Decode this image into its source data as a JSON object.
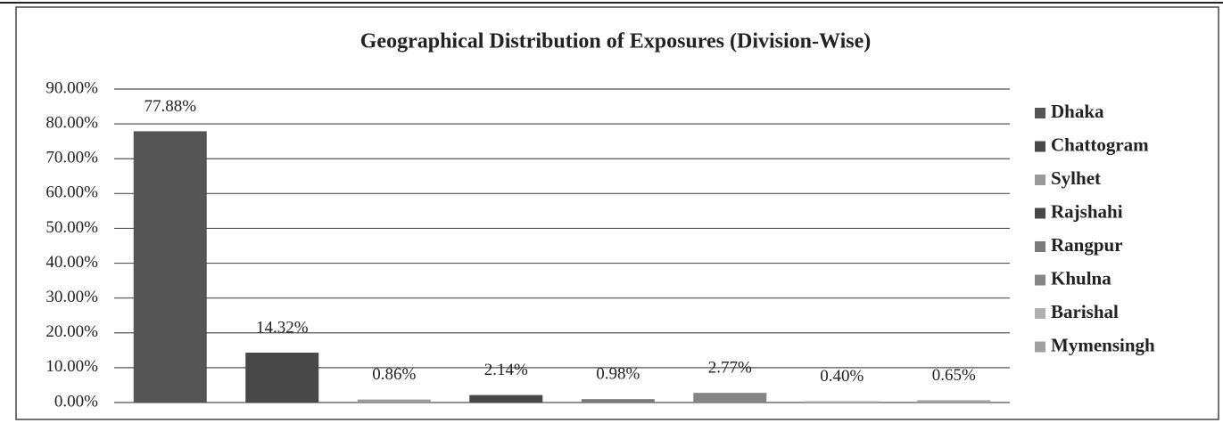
{
  "chart_data": {
    "type": "bar",
    "title": "Geographical Distribution of Exposures (Division-Wise)",
    "categories": [
      "Dhaka",
      "Chattogram",
      "Sylhet",
      "Rajshahi",
      "Rangpur",
      "Khulna",
      "Barishal",
      "Mymensingh"
    ],
    "values": [
      77.88,
      14.32,
      0.86,
      2.14,
      0.98,
      2.77,
      0.4,
      0.65
    ],
    "value_labels": [
      "77.88%",
      "14.32%",
      "0.86%",
      "2.14%",
      "0.98%",
      "2.77%",
      "0.40%",
      "0.65%"
    ],
    "colors": [
      "#555555",
      "#484848",
      "#9a9a9a",
      "#474747",
      "#7a7a7a",
      "#858585",
      "#b0b0b0",
      "#a0a0a0"
    ],
    "ylim": [
      0,
      90
    ],
    "yticks": [
      {
        "value": 0,
        "label": "0.00%"
      },
      {
        "value": 10,
        "label": "10.00%"
      },
      {
        "value": 20,
        "label": "20.00%"
      },
      {
        "value": 30,
        "label": "30.00%"
      },
      {
        "value": 40,
        "label": "40.00%"
      },
      {
        "value": 50,
        "label": "50.00%"
      },
      {
        "value": 60,
        "label": "60.00%"
      },
      {
        "value": 70,
        "label": "70.00%"
      },
      {
        "value": 80,
        "label": "80.00%"
      },
      {
        "value": 90,
        "label": "90.00%"
      }
    ],
    "grid": true,
    "legend": "right"
  }
}
